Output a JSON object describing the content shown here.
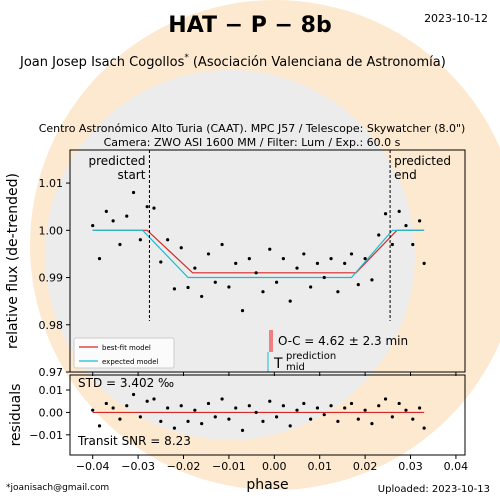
{
  "header": {
    "title": "HAT − P − 8b",
    "date": "2023-10-12",
    "author": "Joan Josep Isach Cogollos",
    "author_mark": "*",
    "affiliation": "(Asociación Valenciana de Astronomía)",
    "subtitle": [
      "Centro Astronómico Alto Turia (CAAT). MPC J57 / Telescope: Skywatcher (8.0\")",
      "Camera: ZWO ASI 1600 MM / Filter: Lum / Exp.: 60.0 s"
    ]
  },
  "footer": {
    "email": "*joanisach@gmail.com",
    "uploaded": "Uploaded: 2023-10-13"
  },
  "chart_data": [
    {
      "type": "scatter",
      "ylabel": "relative flux (de-trended)",
      "xlim": [
        -0.045,
        0.042
      ],
      "ylim": [
        0.97,
        1.017
      ],
      "yticks": [
        0.97,
        0.98,
        0.99,
        {
          "value": 1,
          "label": "1.00"
        },
        1.01
      ],
      "x": [
        -0.04,
        -0.0385,
        -0.037,
        -0.0355,
        -0.034,
        -0.0325,
        -0.031,
        -0.0295,
        -0.028,
        -0.0265,
        -0.025,
        -0.0235,
        -0.022,
        -0.0205,
        -0.019,
        -0.0175,
        -0.016,
        -0.0145,
        -0.013,
        -0.0115,
        -0.01,
        -0.0085,
        -0.007,
        -0.0055,
        -0.004,
        -0.0025,
        -0.001,
        0.0005,
        0.002,
        0.0035,
        0.005,
        0.0065,
        0.008,
        0.0095,
        0.011,
        0.0125,
        0.014,
        0.0155,
        0.017,
        0.0185,
        0.02,
        0.0215,
        0.023,
        0.0245,
        0.026,
        0.0275,
        0.029,
        0.0305,
        0.032,
        0.033
      ],
      "values": [
        1.001,
        0.994,
        1.004,
        1.002,
        0.997,
        1.003,
        1.008,
        0.998,
        1.005,
        1.0047,
        0.9933,
        0.998,
        0.9876,
        0.9963,
        0.9879,
        0.992,
        0.986,
        0.995,
        0.989,
        0.997,
        0.988,
        0.993,
        0.983,
        0.994,
        0.991,
        0.987,
        0.996,
        0.989,
        0.994,
        0.985,
        0.992,
        0.995,
        0.988,
        0.993,
        0.99,
        0.994,
        0.987,
        0.993,
        0.995,
        0.9885,
        0.994,
        0.9895,
        0.999,
        1.0035,
        0.997,
        1.004,
        1.001,
        0.997,
        1.002,
        0.993
      ],
      "color": "#000000",
      "series": [
        {
          "name": "best-fit model",
          "color": "#d62728",
          "x": [
            -0.04,
            -0.028,
            -0.018,
            0.018,
            0.027,
            0.033
          ],
          "values": [
            1,
            1,
            0.991,
            0.991,
            1,
            1
          ]
        },
        {
          "name": "expected model",
          "color": "#17becf",
          "x": [
            -0.04,
            -0.029,
            -0.019,
            0.017,
            0.026,
            0.033
          ],
          "values": [
            1,
            1,
            0.99,
            0.99,
            1,
            1
          ]
        }
      ],
      "legend": "lower left",
      "annotations": {
        "start": {
          "x": -0.0275,
          "text": [
            "predicted",
            "start"
          ]
        },
        "end": {
          "x": 0.0255,
          "text": [
            "predicted",
            "end"
          ]
        },
        "oc": "O-C = 4.62 ± 2.3 min",
        "mid": [
          "prediction",
          "mid"
        ],
        "mid_marker": "T"
      }
    },
    {
      "type": "scatter",
      "ylabel": "residuals",
      "xlabel": "phase",
      "xlim": [
        -0.045,
        0.042
      ],
      "ylim": [
        -0.019,
        0.0167
      ],
      "xticks": [
        {
          "value": -0.04,
          "label": "−0.04"
        },
        {
          "value": -0.03,
          "label": "−0.03"
        },
        {
          "value": -0.02,
          "label": "−0.02"
        },
        {
          "value": -0.01,
          "label": "−0.01"
        },
        {
          "value": 0,
          "label": "0.00"
        },
        0.01,
        0.02,
        0.03,
        0.04
      ],
      "yticks": [
        {
          "value": -0.01,
          "label": "−0.01"
        },
        {
          "value": 0,
          "label": "0.00"
        },
        0.01
      ],
      "x": [
        -0.04,
        -0.0385,
        -0.037,
        -0.0355,
        -0.034,
        -0.0325,
        -0.031,
        -0.0295,
        -0.028,
        -0.0265,
        -0.025,
        -0.0235,
        -0.022,
        -0.0205,
        -0.019,
        -0.0175,
        -0.016,
        -0.0145,
        -0.013,
        -0.0115,
        -0.01,
        -0.0085,
        -0.007,
        -0.0055,
        -0.004,
        -0.0025,
        -0.001,
        0.0005,
        0.002,
        0.0035,
        0.005,
        0.0065,
        0.008,
        0.0095,
        0.011,
        0.0125,
        0.014,
        0.0155,
        0.017,
        0.0185,
        0.02,
        0.0215,
        0.023,
        0.0245,
        0.026,
        0.0275,
        0.029,
        0.0305,
        0.032,
        0.033
      ],
      "values": [
        0.001,
        -0.006,
        0.004,
        0.002,
        -0.003,
        0.003,
        0.008,
        -0.002,
        0.005,
        0.006,
        -0.004,
        0.002,
        -0.007,
        0.003,
        -0.004,
        0.001,
        -0.005,
        0.004,
        -0.002,
        0.006,
        -0.003,
        0.002,
        -0.008,
        0.003,
        0,
        -0.004,
        0.005,
        -0.002,
        0.003,
        -0.006,
        0.001,
        0.004,
        -0.003,
        0.002,
        -0.001,
        0.003,
        -0.004,
        0.002,
        0.004,
        -0.003,
        0.001,
        -0.005,
        0.003,
        0.006,
        -0.002,
        0.004,
        0.001,
        -0.003,
        0.002,
        -0.007
      ],
      "color": "#000000",
      "zero_color": "#d62728",
      "annotations": {
        "std": "STD = 3.402 ‰",
        "snr": "Transit SNR = 8.23"
      }
    }
  ]
}
